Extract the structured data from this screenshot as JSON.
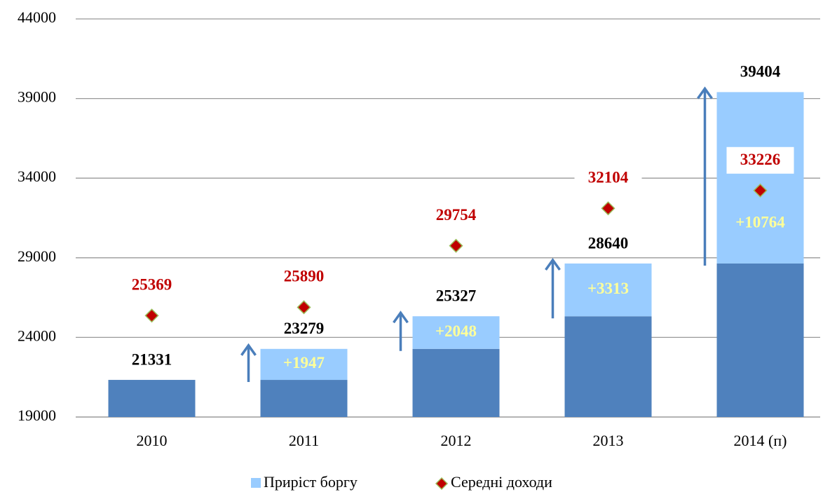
{
  "chart_data": {
    "type": "bar",
    "categories": [
      "2010",
      "2011",
      "2012",
      "2013",
      "2014 (п)"
    ],
    "series": [
      {
        "color": "#4f81bd",
        "values": [
          21331,
          21331,
          23279,
          25327,
          28640
        ]
      },
      {
        "name": "Приріст боргу",
        "color": "#99ccff",
        "values": [
          null,
          1947,
          2048,
          3313,
          10764
        ],
        "value_labels": [
          null,
          "+1947",
          "+2048",
          "+3313",
          "+10764"
        ]
      },
      {
        "name": "Середні доходи",
        "type": "scatter",
        "color": "#c00000",
        "values": [
          25369,
          25890,
          29754,
          32104,
          33226
        ]
      }
    ],
    "totals": [
      21331,
      23279,
      25327,
      28640,
      39404
    ],
    "ylim": [
      19000,
      44000
    ],
    "yticks": [
      19000,
      24000,
      29000,
      34000,
      39000,
      44000
    ],
    "grid": true
  }
}
